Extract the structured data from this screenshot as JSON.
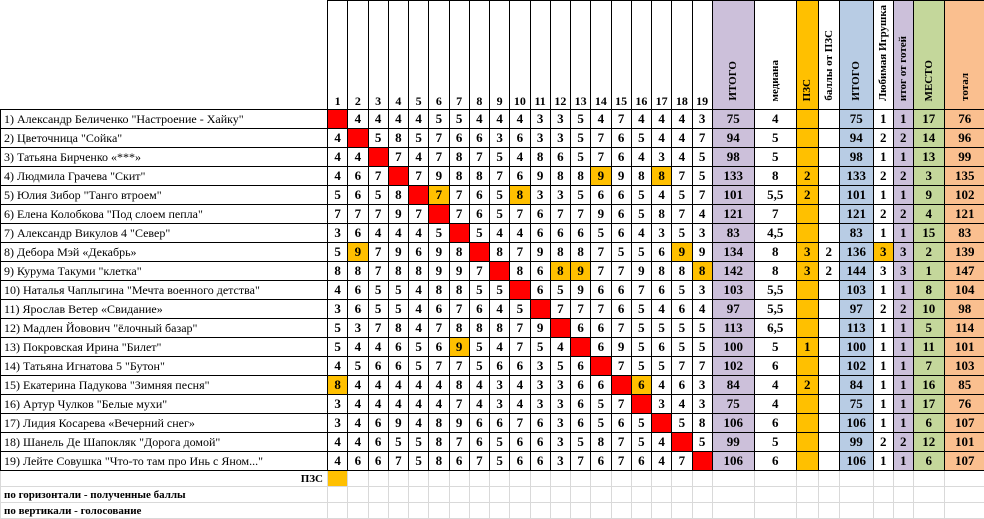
{
  "columns": {
    "numbers": [
      "1",
      "2",
      "3",
      "4",
      "5",
      "6",
      "7",
      "8",
      "9",
      "10",
      "11",
      "12",
      "13",
      "14",
      "15",
      "16",
      "17",
      "18",
      "19"
    ],
    "itogo": "ИТОГО",
    "median": "медиана",
    "pzs": "ПЗС",
    "pzs_points": "баллы от ПЗС",
    "itogo2": "ИТОГО",
    "fav": "Любимая Игрушка",
    "fav_total": "итог от готей",
    "place": "МЕСТО",
    "total": "тотал"
  },
  "colors": {
    "diagonal": "#ff0000",
    "highlight": "#ffc000",
    "itogo": "#ccc0da",
    "itogo2": "#b8cce4",
    "place": "#c4d79b",
    "total": "#fabf8f"
  },
  "rows": [
    {
      "name": "1) Александр Беличенко \"Настроение - Хайку\"",
      "scores": [
        null,
        4,
        4,
        4,
        4,
        5,
        5,
        4,
        4,
        4,
        3,
        3,
        5,
        4,
        7,
        4,
        4,
        4,
        3
      ],
      "itogo": "75",
      "median": "4",
      "pzs": "",
      "pzs_points": "",
      "itogo2": "75",
      "fav": "1",
      "fav_total": "1",
      "place": "17",
      "total": "76",
      "hl": []
    },
    {
      "name": "2) Цветочница \"Сойка\"",
      "scores": [
        4,
        null,
        5,
        8,
        5,
        7,
        6,
        6,
        3,
        6,
        3,
        3,
        5,
        7,
        6,
        5,
        4,
        4,
        7
      ],
      "itogo": "94",
      "median": "5",
      "pzs": "",
      "pzs_points": "",
      "itogo2": "94",
      "fav": "2",
      "fav_total": "2",
      "place": "14",
      "total": "96",
      "hl": []
    },
    {
      "name": "3) Татьяна Бирченко «***»",
      "scores": [
        4,
        4,
        null,
        7,
        4,
        7,
        8,
        7,
        5,
        4,
        8,
        6,
        5,
        7,
        6,
        4,
        3,
        4,
        5
      ],
      "itogo": "98",
      "median": "5",
      "pzs": "",
      "pzs_points": "",
      "itogo2": "98",
      "fav": "1",
      "fav_total": "1",
      "place": "13",
      "total": "99",
      "hl": []
    },
    {
      "name": "4) Людмила Грачева \"Скит\"",
      "scores": [
        4,
        6,
        7,
        null,
        7,
        9,
        8,
        8,
        7,
        6,
        9,
        8,
        8,
        9,
        9,
        8,
        8,
        7,
        5
      ],
      "itogo": "133",
      "median": "8",
      "pzs": "2",
      "pzs_points": "",
      "itogo2": "133",
      "fav": "2",
      "fav_total": "2",
      "place": "3",
      "total": "135",
      "hl": [
        14,
        17
      ]
    },
    {
      "name": "5) Юлия Зибор \"Танго втроем\"",
      "scores": [
        5,
        6,
        5,
        8,
        null,
        7,
        7,
        6,
        5,
        8,
        3,
        3,
        5,
        6,
        6,
        5,
        4,
        5,
        7
      ],
      "itogo": "101",
      "median": "5,5",
      "pzs": "2",
      "pzs_points": "",
      "itogo2": "101",
      "fav": "1",
      "fav_total": "1",
      "place": "9",
      "total": "102",
      "hl": [
        6,
        10
      ]
    },
    {
      "name": "6) Елена Колобкова \"Под слоем пепла\"",
      "scores": [
        7,
        7,
        7,
        9,
        7,
        null,
        7,
        6,
        5,
        7,
        6,
        7,
        7,
        9,
        6,
        5,
        8,
        7,
        4
      ],
      "itogo": "121",
      "median": "7",
      "pzs": "",
      "pzs_points": "",
      "itogo2": "121",
      "fav": "2",
      "fav_total": "2",
      "place": "4",
      "total": "121",
      "hl": []
    },
    {
      "name": "7) Александр Викулов 4 \"Север\"",
      "scores": [
        3,
        6,
        4,
        4,
        4,
        5,
        null,
        5,
        4,
        4,
        6,
        6,
        6,
        5,
        6,
        4,
        3,
        5,
        3
      ],
      "itogo": "83",
      "median": "4,5",
      "pzs": "",
      "pzs_points": "",
      "itogo2": "83",
      "fav": "1",
      "fav_total": "1",
      "place": "15",
      "total": "83",
      "hl": []
    },
    {
      "name": "8) Дебора Мэй «Декабрь»",
      "scores": [
        5,
        9,
        7,
        9,
        6,
        9,
        8,
        null,
        8,
        7,
        9,
        8,
        8,
        7,
        5,
        5,
        6,
        9,
        9
      ],
      "itogo": "134",
      "median": "8",
      "pzs": "3",
      "pzs_points": "2",
      "itogo2": "136",
      "fav": "3",
      "fav_total": "3",
      "place": "2",
      "total": "139",
      "hl": [
        2,
        18
      ],
      "fav_hl": true
    },
    {
      "name": "9) Курума Такуми \"клетка\"",
      "scores": [
        8,
        8,
        7,
        8,
        8,
        9,
        9,
        7,
        null,
        8,
        6,
        8,
        9,
        7,
        7,
        9,
        8,
        8,
        8
      ],
      "itogo": "142",
      "median": "8",
      "pzs": "3",
      "pzs_points": "2",
      "itogo2": "144",
      "fav": "3",
      "fav_total": "3",
      "place": "1",
      "total": "147",
      "hl": [
        12,
        13,
        19
      ]
    },
    {
      "name": "10) Наталья Чаплыгина \"Мечта военного детства\"",
      "scores": [
        4,
        6,
        5,
        5,
        4,
        8,
        8,
        5,
        5,
        null,
        6,
        5,
        9,
        6,
        6,
        7,
        6,
        5,
        3
      ],
      "itogo": "103",
      "median": "5,5",
      "pzs": "",
      "pzs_points": "",
      "itogo2": "103",
      "fav": "1",
      "fav_total": "1",
      "place": "8",
      "total": "104",
      "hl": []
    },
    {
      "name": "11) Ярослав Ветер «Свидание»",
      "scores": [
        3,
        6,
        5,
        5,
        4,
        6,
        7,
        6,
        4,
        5,
        null,
        7,
        7,
        7,
        6,
        5,
        4,
        6,
        4
      ],
      "itogo": "97",
      "median": "5,5",
      "pzs": "",
      "pzs_points": "",
      "itogo2": "97",
      "fav": "2",
      "fav_total": "2",
      "place": "10",
      "total": "98",
      "hl": []
    },
    {
      "name": "12) Мадлен Йовович \"ёлочный базар\"",
      "scores": [
        5,
        3,
        7,
        8,
        4,
        7,
        8,
        8,
        8,
        7,
        9,
        null,
        6,
        6,
        7,
        5,
        5,
        5,
        5
      ],
      "itogo": "113",
      "median": "6,5",
      "pzs": "",
      "pzs_points": "",
      "itogo2": "113",
      "fav": "1",
      "fav_total": "1",
      "place": "5",
      "total": "114",
      "hl": []
    },
    {
      "name": "13) Покровская Ирина \"Билет\"",
      "scores": [
        5,
        4,
        4,
        6,
        5,
        6,
        9,
        5,
        4,
        7,
        5,
        4,
        null,
        6,
        9,
        5,
        6,
        5,
        5
      ],
      "itogo": "100",
      "median": "5",
      "pzs": "1",
      "pzs_points": "",
      "itogo2": "100",
      "fav": "1",
      "fav_total": "1",
      "place": "11",
      "total": "101",
      "hl": [
        7
      ]
    },
    {
      "name": "14) Татьяна Игнатова 5 \"Бутон\"",
      "scores": [
        4,
        5,
        6,
        6,
        5,
        7,
        7,
        5,
        6,
        6,
        3,
        5,
        6,
        null,
        7,
        5,
        5,
        7,
        7
      ],
      "itogo": "102",
      "median": "6",
      "pzs": "",
      "pzs_points": "",
      "itogo2": "102",
      "fav": "1",
      "fav_total": "1",
      "place": "7",
      "total": "103",
      "hl": []
    },
    {
      "name": "15) Екатерина Падукова \"Зимняя песня\"",
      "scores": [
        8,
        4,
        4,
        4,
        4,
        4,
        8,
        4,
        3,
        4,
        3,
        3,
        6,
        6,
        null,
        6,
        4,
        6,
        3
      ],
      "itogo": "84",
      "median": "4",
      "pzs": "2",
      "pzs_points": "",
      "itogo2": "84",
      "fav": "1",
      "fav_total": "1",
      "place": "16",
      "total": "85",
      "hl": [
        1,
        16
      ]
    },
    {
      "name": "16) Артур Чулков \"Белые мухи\"",
      "scores": [
        3,
        4,
        4,
        4,
        4,
        4,
        7,
        4,
        3,
        4,
        3,
        3,
        6,
        5,
        7,
        null,
        3,
        4,
        3
      ],
      "itogo": "75",
      "median": "4",
      "pzs": "",
      "pzs_points": "",
      "itogo2": "75",
      "fav": "1",
      "fav_total": "1",
      "place": "17",
      "total": "76",
      "hl": []
    },
    {
      "name": "17) Лидия Косарева «Вечерний снег»",
      "scores": [
        3,
        4,
        6,
        9,
        4,
        8,
        9,
        6,
        6,
        7,
        6,
        3,
        6,
        5,
        6,
        5,
        null,
        5,
        8
      ],
      "itogo": "106",
      "median": "6",
      "pzs": "",
      "pzs_points": "",
      "itogo2": "106",
      "fav": "1",
      "fav_total": "1",
      "place": "6",
      "total": "107",
      "hl": []
    },
    {
      "name": "18) Шанель Де Шапокляк \"Дорога домой\"",
      "scores": [
        4,
        4,
        6,
        5,
        5,
        8,
        7,
        6,
        5,
        6,
        6,
        3,
        5,
        8,
        7,
        5,
        4,
        null,
        5
      ],
      "itogo": "99",
      "median": "5",
      "pzs": "",
      "pzs_points": "",
      "itogo2": "99",
      "fav": "2",
      "fav_total": "2",
      "place": "12",
      "total": "101",
      "hl": []
    },
    {
      "name": "19) Лейте Совушка \"Что-то там про Инь с Яном...\"",
      "scores": [
        4,
        6,
        6,
        7,
        5,
        8,
        6,
        7,
        5,
        6,
        6,
        3,
        7,
        6,
        7,
        6,
        4,
        7,
        null
      ],
      "itogo": "106",
      "median": "6",
      "pzs": "",
      "pzs_points": "",
      "itogo2": "106",
      "fav": "1",
      "fav_total": "1",
      "place": "6",
      "total": "107",
      "hl": []
    }
  ],
  "footer": {
    "pzs_label": "ПЗС",
    "note1": "по горизонтали - полученные баллы",
    "note2": "по вертикали - голосование"
  }
}
